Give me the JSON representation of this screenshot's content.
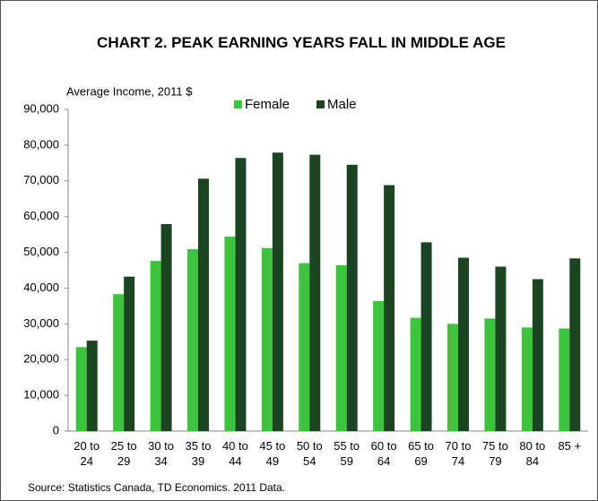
{
  "chart_data": {
    "type": "bar",
    "title": "CHART 2. PEAK EARNING YEARS FALL IN MIDDLE AGE",
    "y_axis_label": "Average Income, 2011 $",
    "source": "Source: Statistics Canada, TD Economics. 2011 Data.",
    "categories": [
      "20 to 24",
      "25 to 29",
      "30 to 34",
      "35 to 39",
      "40 to 44",
      "45 to 49",
      "50 to 54",
      "55 to 59",
      "60 to 64",
      "65 to 69",
      "70 to 74",
      "75 to 79",
      "80 to 84",
      "85 +"
    ],
    "series": [
      {
        "name": "Female",
        "color": "#3cc43c",
        "values": [
          23500,
          38300,
          47600,
          50900,
          54400,
          51200,
          47000,
          46400,
          36400,
          31700,
          30000,
          31500,
          29000,
          28700
        ]
      },
      {
        "name": "Male",
        "color": "#1b4420",
        "values": [
          25300,
          43200,
          57900,
          70600,
          76400,
          77900,
          77300,
          74500,
          68800,
          52800,
          48500,
          46000,
          42500,
          48300
        ]
      }
    ],
    "ylim": [
      0,
      90000
    ],
    "yticks": [
      0,
      {
        "value": 10000,
        "label": "10,000"
      },
      {
        "value": 20000,
        "label": "20,000"
      },
      {
        "value": 30000,
        "label": "30,000"
      },
      {
        "value": 40000,
        "label": "40,000"
      },
      {
        "value": 50000,
        "label": "50,000"
      },
      {
        "value": 60000,
        "label": "60,000"
      },
      {
        "value": 70000,
        "label": "70,000"
      },
      {
        "value": 80000,
        "label": "80,000"
      },
      {
        "value": 90000,
        "label": "90,000"
      }
    ],
    "legend": "top"
  }
}
